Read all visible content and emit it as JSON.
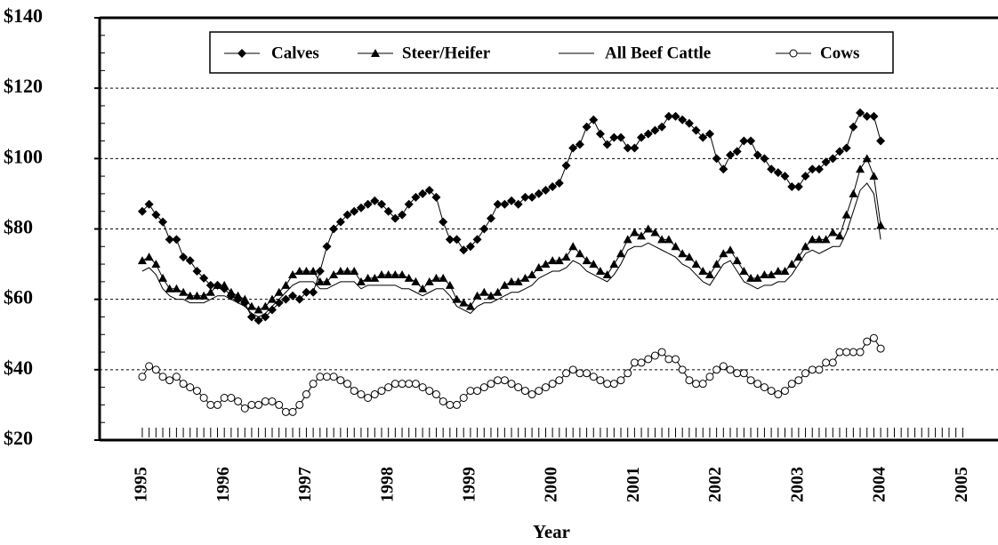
{
  "chart_data": {
    "type": "line",
    "x_label": "Year",
    "x": [
      1995,
      1995.083,
      1995.167,
      1995.25,
      1995.333,
      1995.417,
      1995.5,
      1995.583,
      1995.667,
      1995.75,
      1995.833,
      1995.917,
      1996,
      1996.083,
      1996.167,
      1996.25,
      1996.333,
      1996.417,
      1996.5,
      1996.583,
      1996.667,
      1996.75,
      1996.833,
      1996.917,
      1997,
      1997.083,
      1997.167,
      1997.25,
      1997.333,
      1997.417,
      1997.5,
      1997.583,
      1997.667,
      1997.75,
      1997.833,
      1997.917,
      1998,
      1998.083,
      1998.167,
      1998.25,
      1998.333,
      1998.417,
      1998.5,
      1998.583,
      1998.667,
      1998.75,
      1998.833,
      1998.917,
      1999,
      1999.083,
      1999.167,
      1999.25,
      1999.333,
      1999.417,
      1999.5,
      1999.583,
      1999.667,
      1999.75,
      1999.833,
      1999.917,
      2000,
      2000.083,
      2000.167,
      2000.25,
      2000.333,
      2000.417,
      2000.5,
      2000.583,
      2000.667,
      2000.75,
      2000.833,
      2000.917,
      2001,
      2001.083,
      2001.167,
      2001.25,
      2001.333,
      2001.417,
      2001.5,
      2001.583,
      2001.667,
      2001.75,
      2001.833,
      2001.917,
      2002,
      2002.083,
      2002.167,
      2002.25,
      2002.333,
      2002.417,
      2002.5,
      2002.583,
      2002.667,
      2002.75,
      2002.833,
      2002.917,
      2003,
      2003.083,
      2003.167,
      2003.25,
      2003.333,
      2003.417,
      2003.5,
      2003.583,
      2003.667,
      2003.75,
      2003.833,
      2003.917,
      2004
    ],
    "series": [
      {
        "name": "Calves",
        "color": "#000000",
        "marker": "diamond",
        "values": [
          85,
          87,
          84,
          82,
          77,
          77,
          72,
          71,
          68,
          66,
          64,
          64,
          63,
          61,
          60,
          59,
          55,
          54,
          55,
          57,
          59,
          60,
          61,
          60,
          62,
          62,
          68,
          75,
          80,
          82,
          84,
          85,
          86,
          87,
          88,
          87,
          85,
          83,
          84,
          87,
          89,
          90,
          91,
          89,
          82,
          77,
          77,
          74,
          75,
          77,
          80,
          83,
          87,
          87,
          88,
          87,
          89,
          89,
          90,
          91,
          92,
          93,
          98,
          103,
          104,
          109,
          111,
          107,
          104,
          106,
          106,
          103,
          103,
          106,
          107,
          108,
          109,
          112,
          112,
          111,
          110,
          108,
          106,
          107,
          100,
          97,
          101,
          102,
          105,
          105,
          101,
          100,
          97,
          96,
          95,
          92,
          92,
          95,
          97,
          97,
          99,
          100,
          102,
          103,
          109,
          113,
          112,
          112,
          105
        ]
      },
      {
        "name": "Steer/Heifer",
        "color": "#000000",
        "marker": "triangle",
        "values": [
          71,
          72,
          70,
          66,
          63,
          63,
          62,
          61,
          61,
          61,
          62,
          64,
          64,
          62,
          61,
          60,
          58,
          57,
          58,
          60,
          62,
          64,
          67,
          68,
          68,
          68,
          65,
          65,
          67,
          68,
          68,
          68,
          65,
          66,
          66,
          67,
          67,
          67,
          67,
          66,
          65,
          63,
          65,
          66,
          66,
          64,
          60,
          59,
          58,
          61,
          62,
          61,
          62,
          64,
          65,
          65,
          66,
          67,
          69,
          70,
          71,
          71,
          72,
          75,
          73,
          71,
          70,
          68,
          67,
          70,
          73,
          77,
          79,
          78,
          80,
          79,
          77,
          77,
          75,
          73,
          72,
          70,
          68,
          67,
          70,
          73,
          74,
          71,
          68,
          66,
          66,
          67,
          67,
          68,
          68,
          70,
          72,
          75,
          77,
          77,
          77,
          79,
          78,
          84,
          90,
          97,
          100,
          95,
          81
        ]
      },
      {
        "name": "All Beef Cattle",
        "color": "#000000",
        "marker": "none",
        "values": [
          68,
          69,
          67,
          63,
          61,
          60,
          60,
          59,
          59,
          59,
          60,
          61,
          61,
          60,
          59,
          58,
          56,
          55,
          56,
          58,
          60,
          62,
          64,
          65,
          65,
          65,
          63,
          63,
          64,
          65,
          65,
          65,
          63,
          64,
          64,
          64,
          64,
          64,
          63,
          63,
          62,
          61,
          62,
          63,
          63,
          61,
          58,
          57,
          56,
          58,
          59,
          59,
          60,
          61,
          62,
          62,
          63,
          64,
          66,
          67,
          68,
          68,
          69,
          71,
          70,
          68,
          67,
          66,
          65,
          67,
          70,
          74,
          75,
          75,
          76,
          75,
          74,
          73,
          72,
          70,
          69,
          67,
          65,
          64,
          67,
          70,
          71,
          68,
          65,
          64,
          63,
          64,
          64,
          65,
          65,
          67,
          70,
          73,
          74,
          73,
          74,
          75,
          75,
          79,
          85,
          91,
          93,
          90,
          77
        ]
      },
      {
        "name": "Cows",
        "color": "#000000",
        "marker": "circle",
        "values": [
          38,
          41,
          40,
          38,
          37,
          38,
          36,
          35,
          34,
          32,
          30,
          30,
          32,
          32,
          31,
          29,
          30,
          30,
          31,
          31,
          30,
          28,
          28,
          30,
          33,
          36,
          38,
          38,
          38,
          37,
          36,
          34,
          33,
          32,
          33,
          34,
          35,
          36,
          36,
          36,
          36,
          35,
          34,
          33,
          31,
          30,
          30,
          32,
          34,
          34,
          35,
          36,
          37,
          37,
          36,
          35,
          34,
          33,
          34,
          35,
          36,
          37,
          39,
          40,
          39,
          39,
          38,
          37,
          36,
          36,
          37,
          39,
          42,
          42,
          43,
          44,
          45,
          43,
          43,
          40,
          37,
          36,
          36,
          38,
          40,
          41,
          40,
          39,
          39,
          37,
          36,
          35,
          34,
          33,
          34,
          36,
          37,
          39,
          40,
          40,
          42,
          42,
          45,
          45,
          45,
          45,
          48,
          49,
          46
        ]
      }
    ],
    "xlim": [
      1994.48,
      2005.43
    ],
    "xticks": [
      1995,
      1996,
      1997,
      1998,
      1999,
      2000,
      2001,
      2002,
      2003,
      2004,
      2005
    ],
    "ylim": [
      20,
      140
    ],
    "yticks": [
      {
        "value": 20,
        "label": "$20"
      },
      {
        "value": 40,
        "label": "$40"
      },
      {
        "value": 60,
        "label": "$60"
      },
      {
        "value": 80,
        "label": "$80"
      },
      {
        "value": 100,
        "label": "$100"
      },
      {
        "value": 120,
        "label": "$120"
      },
      {
        "value": 140,
        "label": "$140"
      }
    ],
    "grid": true,
    "legend": "top"
  }
}
